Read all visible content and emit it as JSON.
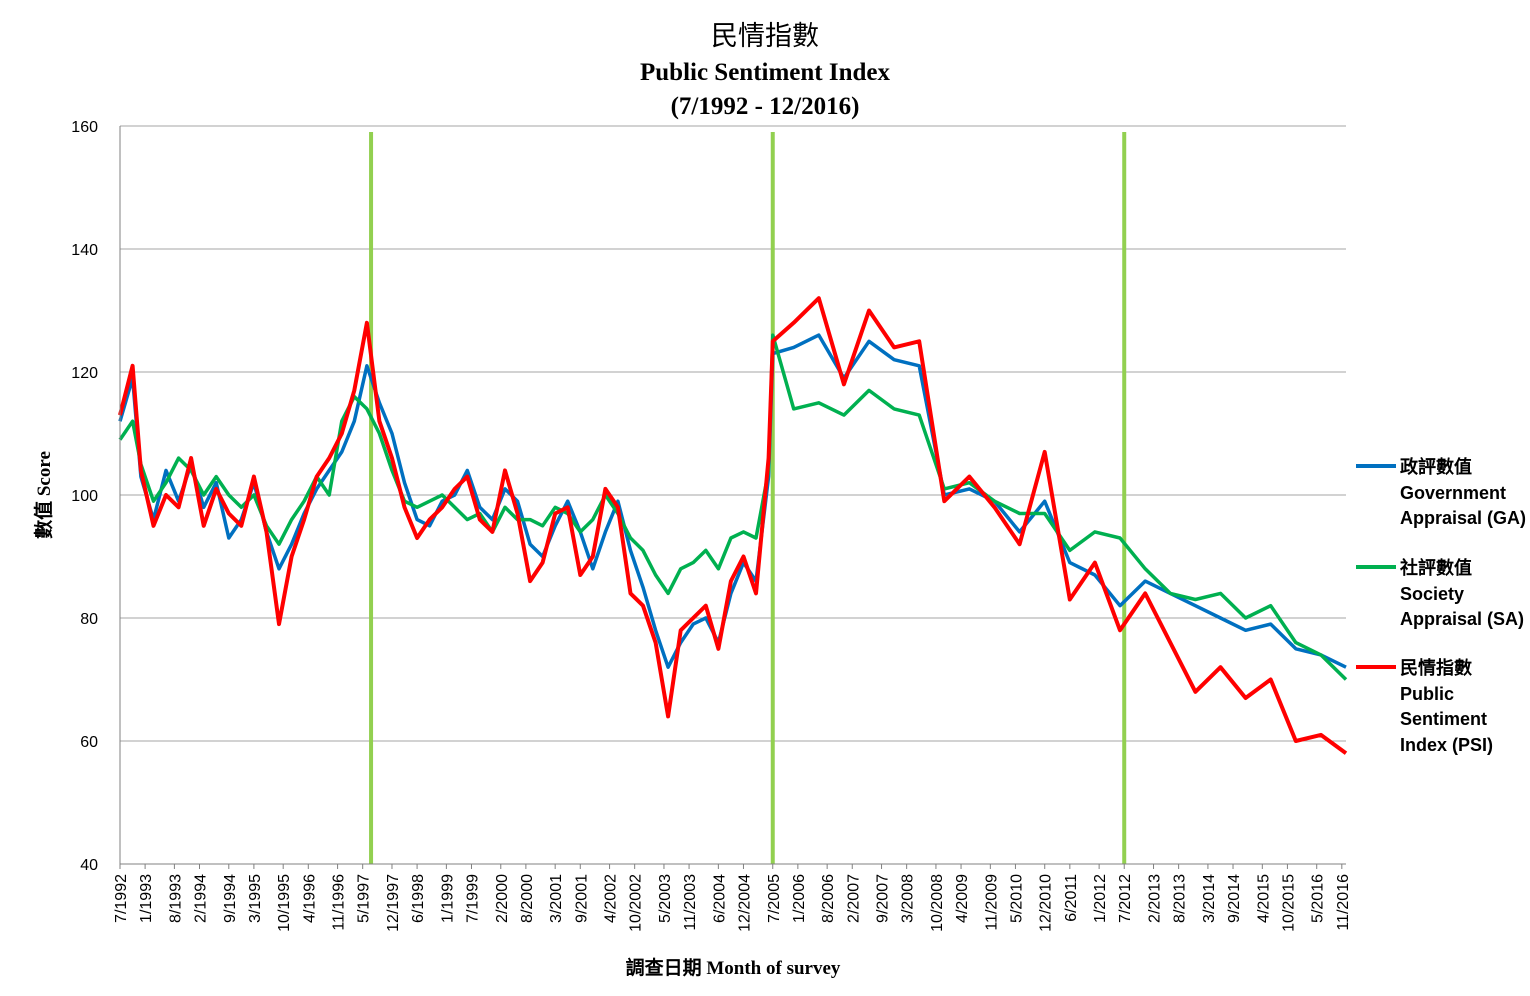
{
  "chart_data": {
    "type": "line",
    "title_zh": "民情指數",
    "title_en": "Public Sentiment Index",
    "subtitle": "(7/1992 - 12/2016)",
    "ylabel": "數值 Score",
    "xlabel": "調查日期  Month of survey",
    "ylim": [
      40,
      160
    ],
    "yticks": [
      40,
      60,
      80,
      100,
      120,
      140,
      160
    ],
    "grid": true,
    "legend_position": "right",
    "x_start": "7/1992",
    "x_end": "12/2016",
    "xticks": [
      "7/1992",
      "1/1993",
      "8/1993",
      "2/1994",
      "9/1994",
      "3/1995",
      "10/1995",
      "4/1996",
      "11/1996",
      "5/1997",
      "12/1997",
      "6/1998",
      "1/1999",
      "7/1999",
      "2/2000",
      "8/2000",
      "3/2001",
      "9/2001",
      "4/2002",
      "10/2002",
      "5/2003",
      "11/2003",
      "6/2004",
      "12/2004",
      "7/2005",
      "1/2006",
      "8/2006",
      "2/2007",
      "9/2007",
      "3/2008",
      "10/2008",
      "4/2009",
      "11/2009",
      "5/2010",
      "12/2010",
      "6/2011",
      "1/2012",
      "7/2012",
      "2/2013",
      "8/2013",
      "3/2014",
      "9/2014",
      "4/2015",
      "10/2015",
      "5/2016",
      "11/2016"
    ],
    "vertical_markers": [
      "7/1997",
      "7/2005",
      "7/2012"
    ],
    "marker_color": "#92D050",
    "series": [
      {
        "name_zh": "政評數值",
        "name_en_1": "Government",
        "name_en_2": "Appraisal (GA)",
        "color": "#0070C0",
        "points": [
          [
            "7/1992",
            112
          ],
          [
            "10/1992",
            119
          ],
          [
            "12/1992",
            103
          ],
          [
            "3/1993",
            96
          ],
          [
            "6/1993",
            104
          ],
          [
            "9/1993",
            99
          ],
          [
            "12/1993",
            105
          ],
          [
            "3/1994",
            98
          ],
          [
            "6/1994",
            102
          ],
          [
            "9/1994",
            93
          ],
          [
            "12/1994",
            96
          ],
          [
            "3/1995",
            102
          ],
          [
            "6/1995",
            94
          ],
          [
            "9/1995",
            88
          ],
          [
            "12/1995",
            92
          ],
          [
            "3/1996",
            97
          ],
          [
            "6/1996",
            101
          ],
          [
            "9/1996",
            104
          ],
          [
            "12/1996",
            107
          ],
          [
            "3/1997",
            112
          ],
          [
            "6/1997",
            121
          ],
          [
            "9/1997",
            115
          ],
          [
            "12/1997",
            110
          ],
          [
            "3/1998",
            102
          ],
          [
            "6/1998",
            96
          ],
          [
            "9/1998",
            95
          ],
          [
            "12/1998",
            99
          ],
          [
            "3/1999",
            100
          ],
          [
            "6/1999",
            104
          ],
          [
            "9/1999",
            98
          ],
          [
            "12/1999",
            96
          ],
          [
            "3/2000",
            101
          ],
          [
            "6/2000",
            99
          ],
          [
            "9/2000",
            92
          ],
          [
            "12/2000",
            90
          ],
          [
            "3/2001",
            95
          ],
          [
            "6/2001",
            99
          ],
          [
            "9/2001",
            94
          ],
          [
            "12/2001",
            88
          ],
          [
            "3/2002",
            94
          ],
          [
            "6/2002",
            99
          ],
          [
            "9/2002",
            91
          ],
          [
            "12/2002",
            85
          ],
          [
            "3/2003",
            78
          ],
          [
            "6/2003",
            72
          ],
          [
            "9/2003",
            76
          ],
          [
            "12/2003",
            79
          ],
          [
            "3/2004",
            80
          ],
          [
            "6/2004",
            76
          ],
          [
            "9/2004",
            84
          ],
          [
            "12/2004",
            89
          ],
          [
            "3/2005",
            86
          ],
          [
            "6/2005",
            103
          ],
          [
            "7/2005",
            123
          ],
          [
            "12/2005",
            124
          ],
          [
            "6/2006",
            126
          ],
          [
            "12/2006",
            119
          ],
          [
            "6/2007",
            125
          ],
          [
            "12/2007",
            122
          ],
          [
            "6/2008",
            121
          ],
          [
            "12/2008",
            100
          ],
          [
            "6/2009",
            101
          ],
          [
            "12/2009",
            99
          ],
          [
            "6/2010",
            94
          ],
          [
            "12/2010",
            99
          ],
          [
            "6/2011",
            89
          ],
          [
            "12/2011",
            87
          ],
          [
            "6/2012",
            82
          ],
          [
            "12/2012",
            86
          ],
          [
            "6/2013",
            84
          ],
          [
            "12/2013",
            82
          ],
          [
            "6/2014",
            80
          ],
          [
            "12/2014",
            78
          ],
          [
            "6/2015",
            79
          ],
          [
            "12/2015",
            75
          ],
          [
            "6/2016",
            74
          ],
          [
            "12/2016",
            72
          ]
        ]
      },
      {
        "name_zh": "社評數值",
        "name_en_1": "Society",
        "name_en_2": "Appraisal (SA)",
        "color": "#00B050",
        "points": [
          [
            "7/1992",
            109
          ],
          [
            "10/1992",
            112
          ],
          [
            "12/1992",
            105
          ],
          [
            "3/1993",
            99
          ],
          [
            "6/1993",
            102
          ],
          [
            "9/1993",
            106
          ],
          [
            "12/1993",
            104
          ],
          [
            "3/1994",
            100
          ],
          [
            "6/1994",
            103
          ],
          [
            "9/1994",
            100
          ],
          [
            "12/1994",
            98
          ],
          [
            "3/1995",
            100
          ],
          [
            "6/1995",
            95
          ],
          [
            "9/1995",
            92
          ],
          [
            "12/1995",
            96
          ],
          [
            "3/1996",
            99
          ],
          [
            "6/1996",
            103
          ],
          [
            "9/1996",
            100
          ],
          [
            "12/1996",
            112
          ],
          [
            "3/1997",
            116
          ],
          [
            "6/1997",
            114
          ],
          [
            "9/1997",
            110
          ],
          [
            "12/1997",
            104
          ],
          [
            "3/1998",
            99
          ],
          [
            "6/1998",
            98
          ],
          [
            "9/1998",
            99
          ],
          [
            "12/1998",
            100
          ],
          [
            "3/1999",
            98
          ],
          [
            "6/1999",
            96
          ],
          [
            "9/1999",
            97
          ],
          [
            "12/1999",
            94
          ],
          [
            "3/2000",
            98
          ],
          [
            "6/2000",
            96
          ],
          [
            "9/2000",
            96
          ],
          [
            "12/2000",
            95
          ],
          [
            "3/2001",
            98
          ],
          [
            "6/2001",
            97
          ],
          [
            "9/2001",
            94
          ],
          [
            "12/2001",
            96
          ],
          [
            "3/2002",
            100
          ],
          [
            "6/2002",
            97
          ],
          [
            "9/2002",
            93
          ],
          [
            "12/2002",
            91
          ],
          [
            "3/2003",
            87
          ],
          [
            "6/2003",
            84
          ],
          [
            "9/2003",
            88
          ],
          [
            "12/2003",
            89
          ],
          [
            "3/2004",
            91
          ],
          [
            "6/2004",
            88
          ],
          [
            "9/2004",
            93
          ],
          [
            "12/2004",
            94
          ],
          [
            "3/2005",
            93
          ],
          [
            "6/2005",
            104
          ],
          [
            "7/2005",
            126
          ],
          [
            "12/2005",
            114
          ],
          [
            "6/2006",
            115
          ],
          [
            "12/2006",
            113
          ],
          [
            "6/2007",
            117
          ],
          [
            "12/2007",
            114
          ],
          [
            "6/2008",
            113
          ],
          [
            "12/2008",
            101
          ],
          [
            "6/2009",
            102
          ],
          [
            "12/2009",
            99
          ],
          [
            "6/2010",
            97
          ],
          [
            "12/2010",
            97
          ],
          [
            "6/2011",
            91
          ],
          [
            "12/2011",
            94
          ],
          [
            "6/2012",
            93
          ],
          [
            "12/2012",
            88
          ],
          [
            "6/2013",
            84
          ],
          [
            "12/2013",
            83
          ],
          [
            "6/2014",
            84
          ],
          [
            "12/2014",
            80
          ],
          [
            "6/2015",
            82
          ],
          [
            "12/2015",
            76
          ],
          [
            "6/2016",
            74
          ],
          [
            "12/2016",
            70
          ]
        ]
      },
      {
        "name_zh": "民情指數",
        "name_en_1": "Public",
        "name_en_2": "Sentiment",
        "name_en_3": "Index (PSI)",
        "color": "#FF0000",
        "points": [
          [
            "7/1992",
            113
          ],
          [
            "10/1992",
            121
          ],
          [
            "12/1992",
            104
          ],
          [
            "3/1993",
            95
          ],
          [
            "6/1993",
            100
          ],
          [
            "9/1993",
            98
          ],
          [
            "12/1993",
            106
          ],
          [
            "3/1994",
            95
          ],
          [
            "6/1994",
            101
          ],
          [
            "9/1994",
            97
          ],
          [
            "12/1994",
            95
          ],
          [
            "3/1995",
            103
          ],
          [
            "6/1995",
            94
          ],
          [
            "9/1995",
            79
          ],
          [
            "12/1995",
            90
          ],
          [
            "3/1996",
            96
          ],
          [
            "6/1996",
            103
          ],
          [
            "9/1996",
            106
          ],
          [
            "12/1996",
            110
          ],
          [
            "3/1997",
            117
          ],
          [
            "6/1997",
            128
          ],
          [
            "9/1997",
            112
          ],
          [
            "12/1997",
            106
          ],
          [
            "3/1998",
            98
          ],
          [
            "6/1998",
            93
          ],
          [
            "9/1998",
            96
          ],
          [
            "12/1998",
            98
          ],
          [
            "3/1999",
            101
          ],
          [
            "6/1999",
            103
          ],
          [
            "9/1999",
            96
          ],
          [
            "12/1999",
            94
          ],
          [
            "3/2000",
            104
          ],
          [
            "6/2000",
            97
          ],
          [
            "9/2000",
            86
          ],
          [
            "12/2000",
            89
          ],
          [
            "3/2001",
            97
          ],
          [
            "6/2001",
            98
          ],
          [
            "9/2001",
            87
          ],
          [
            "12/2001",
            90
          ],
          [
            "3/2002",
            101
          ],
          [
            "6/2002",
            98
          ],
          [
            "9/2002",
            84
          ],
          [
            "12/2002",
            82
          ],
          [
            "3/2003",
            76
          ],
          [
            "6/2003",
            64
          ],
          [
            "9/2003",
            78
          ],
          [
            "12/2003",
            80
          ],
          [
            "3/2004",
            82
          ],
          [
            "6/2004",
            75
          ],
          [
            "9/2004",
            86
          ],
          [
            "12/2004",
            90
          ],
          [
            "3/2005",
            84
          ],
          [
            "6/2005",
            106
          ],
          [
            "7/2005",
            125
          ],
          [
            "12/2005",
            128
          ],
          [
            "6/2006",
            132
          ],
          [
            "12/2006",
            118
          ],
          [
            "6/2007",
            130
          ],
          [
            "12/2007",
            124
          ],
          [
            "6/2008",
            125
          ],
          [
            "12/2008",
            99
          ],
          [
            "6/2009",
            103
          ],
          [
            "12/2009",
            98
          ],
          [
            "6/2010",
            92
          ],
          [
            "12/2010",
            107
          ],
          [
            "6/2011",
            83
          ],
          [
            "12/2011",
            89
          ],
          [
            "6/2012",
            78
          ],
          [
            "12/2012",
            84
          ],
          [
            "6/2013",
            76
          ],
          [
            "12/2013",
            68
          ],
          [
            "6/2014",
            72
          ],
          [
            "12/2014",
            67
          ],
          [
            "6/2015",
            70
          ],
          [
            "12/2015",
            60
          ],
          [
            "6/2016",
            61
          ],
          [
            "12/2016",
            58
          ]
        ]
      }
    ]
  }
}
